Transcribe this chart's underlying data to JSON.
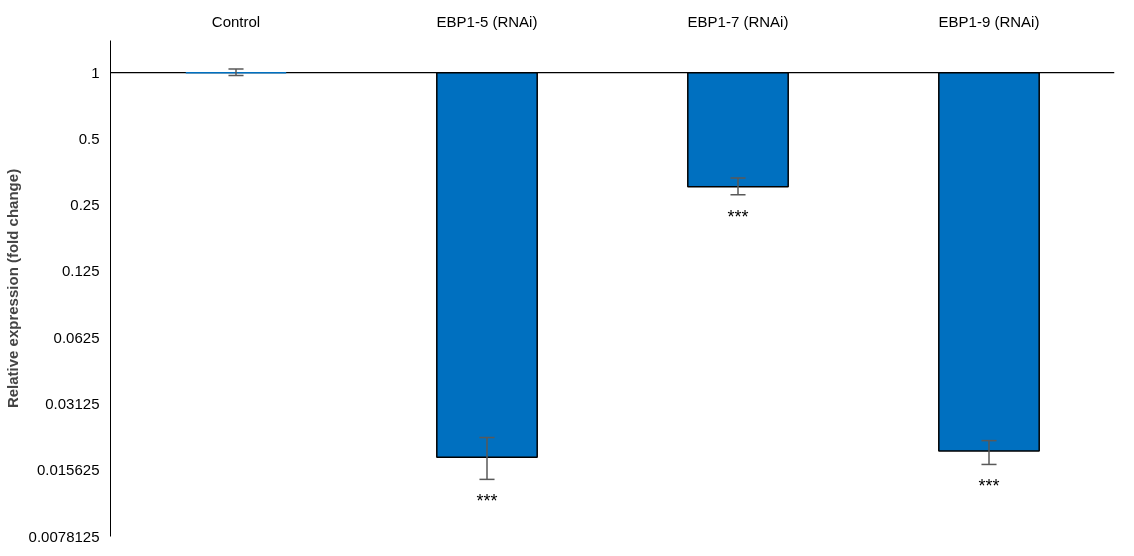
{
  "chart_data": {
    "type": "bar",
    "ylabel": "Relative expression (fold change)",
    "categories": [
      "Control",
      "EBP1-5 (RNAi)",
      "EBP1-7 (RNAi)",
      "EBP1-9 (RNAi)"
    ],
    "values": [
      0,
      -0.9821,
      -0.697,
      -0.9809
    ],
    "base": [
      1,
      1,
      1,
      1
    ],
    "color": "#0070c0",
    "errors": [
      [
        0.97,
        1.04
      ],
      [
        0.0142,
        0.022
      ],
      [
        0.279,
        0.332
      ],
      [
        0.0166,
        0.0213
      ]
    ],
    "log": "y",
    "ylim": [
      0.0078125,
      1.4
    ],
    "ref_lines": [
      {
        "axis": "y",
        "value": 1,
        "color": "#000000"
      }
    ],
    "yticks": [
      0.0078125,
      0.015625,
      0.03125,
      0.0625,
      0.125,
      0.25,
      0.5,
      1
    ],
    "grid": false,
    "annotations": [
      {
        "text": "***",
        "x": "EBP1-5 (RNAi)",
        "y": 0.0142
      },
      {
        "text": "***",
        "x": "EBP1-7 (RNAi)",
        "y": 0.279
      },
      {
        "text": "***",
        "x": "EBP1-9 (RNAi)",
        "y": 0.0166
      }
    ]
  }
}
